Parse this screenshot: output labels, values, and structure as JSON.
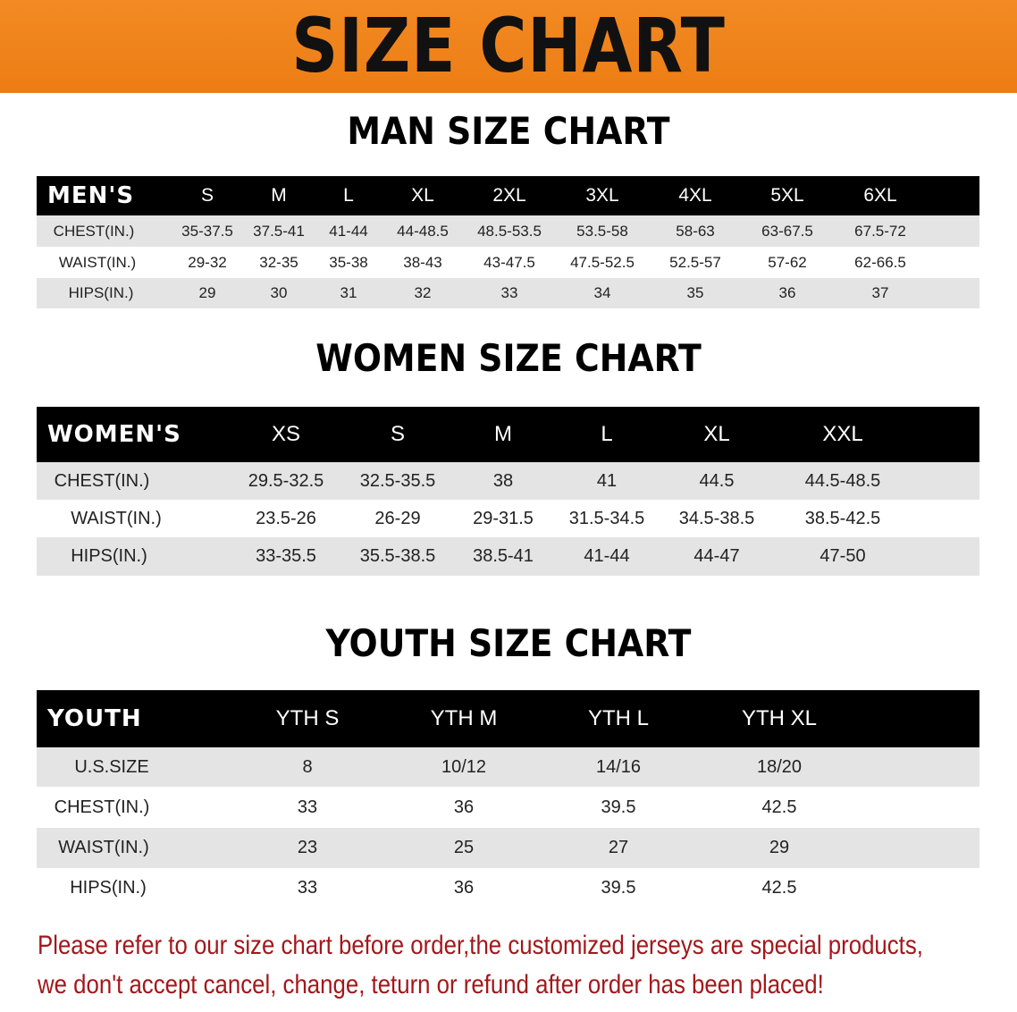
{
  "banner": {
    "title": "SIZE CHART",
    "color": "#ec7d14"
  },
  "men": {
    "title": "MAN SIZE CHART",
    "header": [
      "MEN'S",
      "S",
      "M",
      "L",
      "XL",
      "2XL",
      "3XL",
      "4XL",
      "5XL",
      "6XL"
    ],
    "rows": [
      [
        "CHEST(IN.)",
        "35-37.5",
        "37.5-41",
        "41-44",
        "44-48.5",
        "48.5-53.5",
        "53.5-58",
        "58-63",
        "63-67.5",
        "67.5-72"
      ],
      [
        "WAIST(IN.)",
        "29-32",
        "32-35",
        "35-38",
        "38-43",
        "43-47.5",
        "47.5-52.5",
        "52.5-57",
        "57-62",
        "62-66.5"
      ],
      [
        "HIPS(IN.)",
        "29",
        "30",
        "31",
        "32",
        "33",
        "34",
        "35",
        "36",
        "37"
      ]
    ]
  },
  "women": {
    "title": "WOMEN SIZE CHART",
    "header": [
      "WOMEN'S",
      "XS",
      "S",
      "M",
      "L",
      "XL",
      "XXL"
    ],
    "rows": [
      [
        "CHEST(IN.)",
        "29.5-32.5",
        "32.5-35.5",
        "38",
        "41",
        "44.5",
        "44.5-48.5"
      ],
      [
        "WAIST(IN.)",
        "23.5-26",
        "26-29",
        "29-31.5",
        "31.5-34.5",
        "34.5-38.5",
        "38.5-42.5"
      ],
      [
        "HIPS(IN.)",
        "33-35.5",
        "35.5-38.5",
        "38.5-41",
        "41-44",
        "44-47",
        "47-50"
      ]
    ]
  },
  "youth": {
    "title": "YOUTH SIZE CHART",
    "header": [
      "YOUTH",
      "YTH S",
      "YTH M",
      "YTH L",
      "YTH XL"
    ],
    "rows": [
      [
        "U.S.SIZE",
        "8",
        "10/12",
        "14/16",
        "18/20"
      ],
      [
        "CHEST(IN.)",
        "33",
        "36",
        "39.5",
        "42.5"
      ],
      [
        "WAIST(IN.)",
        "23",
        "25",
        "27",
        "29"
      ],
      [
        "HIPS(IN.)",
        "33",
        "36",
        "39.5",
        "42.5"
      ]
    ]
  },
  "notice": {
    "line1": "Please refer to our size chart before order,the customized jerseys are special products,",
    "line2": "we don't accept cancel, change, teturn or refund after order has been placed!",
    "color": "#a3171b"
  }
}
